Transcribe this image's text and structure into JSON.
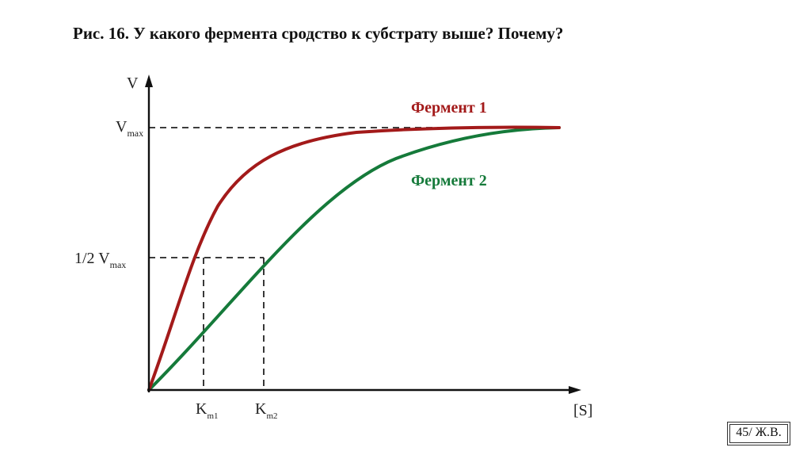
{
  "slide": {
    "title": "Рис. 16. У какого фермента сродство к субстрату выше? Почему?",
    "page_label": "45/ Ж.В."
  },
  "diagram": {
    "y_axis_label": "V",
    "x_axis_label": "[S]",
    "vmax_label": {
      "main": "V",
      "sub": "max"
    },
    "half_vmax_label": {
      "prefix": "1/2 V",
      "sub": "max"
    },
    "km1_label": {
      "main": "K",
      "sub": "m1"
    },
    "km2_label": {
      "main": "K",
      "sub": "m2"
    },
    "curves": [
      {
        "name": "Фермент 1",
        "color": "#a31a1a"
      },
      {
        "name": "Фермент 2",
        "color": "#157a3a"
      }
    ]
  }
}
